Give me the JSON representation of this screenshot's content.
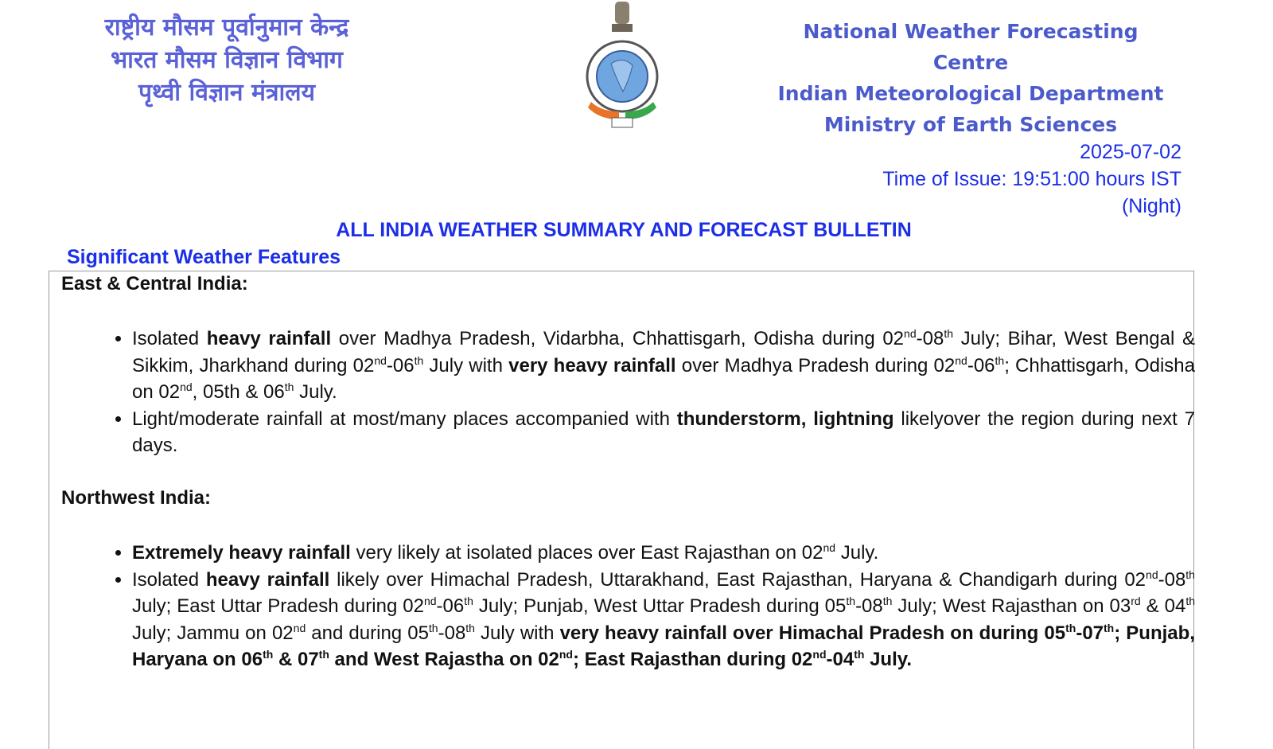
{
  "header": {
    "hindi_lines": [
      "राष्ट्रीय मौसम पूर्वानुमान केन्द्र",
      "भारत मौसम विज्ञान विभाग",
      "पृथ्वी विज्ञान मंत्रालय"
    ],
    "english_lines": [
      "National Weather Forecasting Centre",
      "Indian Meteorological Department",
      "Ministry of Earth Sciences"
    ],
    "emblem_icon": "imd-emblem-icon",
    "colors": {
      "hindi": "#5b62d8",
      "english": "#4c5bcb",
      "accent": "#1c2ee8"
    }
  },
  "issue": {
    "date": "2025-07-02",
    "time": "Time of Issue: 19:51:00 hours IST",
    "period": "(Night)"
  },
  "bulletin_title": "ALL INDIA WEATHER SUMMARY AND FORECAST BULLETIN",
  "section_title": "Significant Weather Features",
  "regions": [
    {
      "name": "East & Central India:",
      "bullets": [
        [
          {
            "t": "Isolated "
          },
          {
            "t": "heavy rainfall",
            "b": true
          },
          {
            "t": " over Madhya Pradesh, Vidarbha, Chhattisgarh, Odisha during 02"
          },
          {
            "s": "nd"
          },
          {
            "t": "-08"
          },
          {
            "s": "th"
          },
          {
            "t": " July; Bihar, West Bengal & Sikkim, Jharkhand during 02"
          },
          {
            "s": "nd"
          },
          {
            "t": "-06"
          },
          {
            "s": "th"
          },
          {
            "t": " July with "
          },
          {
            "t": "very heavy rainfall",
            "b": true
          },
          {
            "t": " over Madhya Pradesh during 02"
          },
          {
            "s": "nd"
          },
          {
            "t": "-06"
          },
          {
            "s": "th"
          },
          {
            "t": "; Chhattisgarh, Odisha on 02"
          },
          {
            "s": "nd"
          },
          {
            "t": ", 05th & 06"
          },
          {
            "s": "th"
          },
          {
            "t": " July."
          }
        ],
        [
          {
            "t": "Light/moderate rainfall at most/many places accompanied with "
          },
          {
            "t": "thunderstorm, lightning",
            "b": true
          },
          {
            "t": " likelyover the region during next 7 days."
          }
        ]
      ]
    },
    {
      "name": "Northwest India:",
      "bullets": [
        [
          {
            "t": "Extremely heavy rainfall",
            "b": true
          },
          {
            "t": "  very likely at isolated places over East Rajasthan on 02"
          },
          {
            "s": "nd"
          },
          {
            "t": " July."
          }
        ],
        [
          {
            "t": "Isolated "
          },
          {
            "t": "heavy rainfall",
            "b": true
          },
          {
            "t": " likely over Himachal Pradesh, Uttarakhand, East Rajasthan, Haryana & Chandigarh during 02"
          },
          {
            "s": "nd"
          },
          {
            "t": "-08"
          },
          {
            "s": "th"
          },
          {
            "t": " July; East Uttar Pradesh during 02"
          },
          {
            "s": "nd"
          },
          {
            "t": "-06"
          },
          {
            "s": "th"
          },
          {
            "t": " July; Punjab, West Uttar Pradesh during 05"
          },
          {
            "s": "th"
          },
          {
            "t": "-08"
          },
          {
            "s": "th"
          },
          {
            "t": " July; West Rajasthan on 03"
          },
          {
            "s": "rd"
          },
          {
            "t": " & 04"
          },
          {
            "s": "th"
          },
          {
            "t": " July; Jammu on 02"
          },
          {
            "s": "nd"
          },
          {
            "t": " and during 05"
          },
          {
            "s": "th"
          },
          {
            "t": "-08"
          },
          {
            "s": "th"
          },
          {
            "t": " July with "
          },
          {
            "t": "very heavy rainfall over Himachal Pradesh on during 05",
            "b": true
          },
          {
            "s": "th",
            "b": true
          },
          {
            "t": "-07",
            "b": true
          },
          {
            "s": "th",
            "b": true
          },
          {
            "t": "; Punjab, Haryana on 06",
            "b": true
          },
          {
            "s": "th",
            "b": true
          },
          {
            "t": " & 07",
            "b": true
          },
          {
            "s": "th",
            "b": true
          },
          {
            "t": " and West Rajastha on 02",
            "b": true
          },
          {
            "s": "nd",
            "b": true
          },
          {
            "t": "; East Rajasthan during 02",
            "b": true
          },
          {
            "s": "nd",
            "b": true
          },
          {
            "t": "-04",
            "b": true
          },
          {
            "s": "th",
            "b": true
          },
          {
            "t": " July.",
            "b": true
          }
        ]
      ]
    }
  ]
}
